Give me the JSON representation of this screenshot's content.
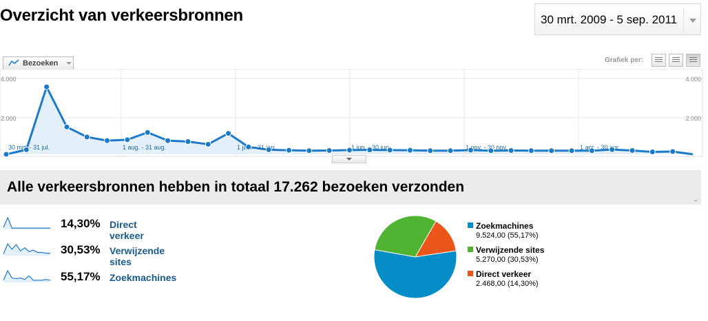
{
  "header": {
    "title": "Overzicht van verkeersbronnen",
    "date_range": "30 mrt. 2009 - 5 sep. 2011"
  },
  "toolbar": {
    "metric_label": "Bezoeken",
    "graph_per_label": "Grafiek per:",
    "graph_buttons": [
      "dag",
      "week",
      "maand"
    ],
    "active_graph_button": "maand"
  },
  "chart_data": {
    "type": "area",
    "series": [
      {
        "values": [
          0,
          250,
          3700,
          1500,
          950,
          750,
          800,
          1200,
          750,
          700,
          550,
          1150,
          400,
          250,
          220,
          200,
          210,
          230,
          240,
          230,
          220,
          200,
          200,
          230,
          200,
          210,
          200,
          200,
          200,
          200,
          260,
          210,
          130,
          150,
          0
        ]
      }
    ],
    "y_ticks": [
      "4.000",
      "2.000"
    ],
    "ylim": [
      0,
      4000
    ],
    "x_labels": [
      "30 mrt. - 31 jul.",
      "1 aug. - 31 aug.",
      "1 jan. - 31 jan.",
      "1 jun. - 30 jun.",
      "1 nov. - 30 nov.",
      "1 apr. - 30 apr."
    ],
    "grid": true,
    "color": "#1a7ac9",
    "fill": "#e3eff9"
  },
  "summary": {
    "headline": "Alle verkeersbronnen hebben in totaal 17.262 bezoeken verzonden"
  },
  "sources": [
    {
      "pct": "14,30%",
      "name": "Direct verkeer",
      "sparkline": [
        3,
        18,
        2,
        2,
        2,
        2,
        2,
        2,
        2,
        2,
        2,
        2
      ]
    },
    {
      "pct": "30,53%",
      "name": "Verwijzende sites",
      "sparkline": [
        2,
        15,
        8,
        14,
        6,
        10,
        5,
        7,
        4,
        4,
        3,
        3
      ]
    },
    {
      "pct": "55,17%",
      "name": "Zoekmachines",
      "sparkline": [
        3,
        16,
        6,
        5,
        6,
        4,
        9,
        3,
        3,
        3,
        4,
        3
      ]
    }
  ],
  "pie": {
    "slices": [
      {
        "name": "Zoekmachines",
        "value": "9.524,00 (55,17%)",
        "fraction": 0.5517,
        "color": "#058dc7"
      },
      {
        "name": "Verwijzende sites",
        "value": "5.270,00 (30,53%)",
        "fraction": 0.3053,
        "color": "#50b432"
      },
      {
        "name": "Direct verkeer",
        "value": "2.468,00 (14,30%)",
        "fraction": 0.143,
        "color": "#ed561b"
      }
    ]
  },
  "colors": {
    "link": "#1a5b8c",
    "line": "#1a7ac9"
  },
  "icons": {
    "metric": "line-chart-icon",
    "dropdown": "chevron-down-icon"
  }
}
